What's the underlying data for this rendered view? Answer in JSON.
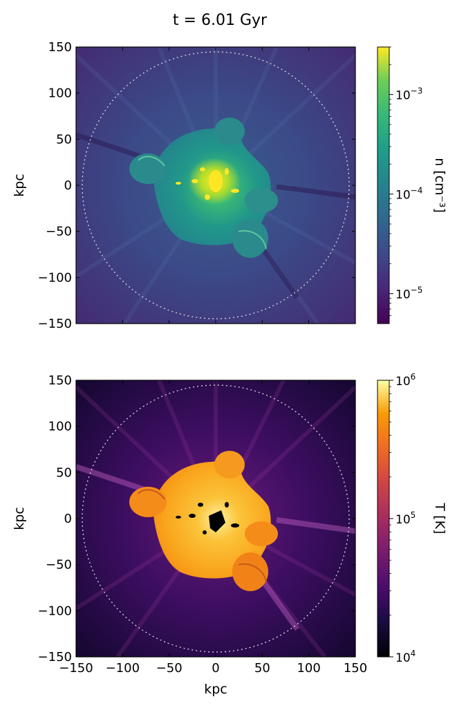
{
  "chart_data": [
    {
      "type": "heatmap",
      "title": "t = 6.01 Gyr",
      "xlabel": "",
      "ylabel": "kpc",
      "xlim": [
        -150,
        150
      ],
      "ylim": [
        -150,
        150
      ],
      "x_ticks": [
        -150,
        -100,
        -50,
        0,
        50,
        100,
        150
      ],
      "y_ticks": [
        "150",
        "100",
        "50",
        "0",
        "−50",
        "−100",
        "−150"
      ],
      "colorbar": {
        "label": "n [cm⁻³]",
        "scale": "log",
        "range": [
          5e-06,
          0.003
        ],
        "ticks": [
          {
            "base": "10",
            "exp": "−3",
            "value": 0.001
          },
          {
            "base": "10",
            "exp": "−4",
            "value": 0.0001
          },
          {
            "base": "10",
            "exp": "−5",
            "value": 1e-05
          }
        ],
        "colormap": "viridis"
      },
      "reference_circle_radius_kpc": 145
    },
    {
      "type": "heatmap",
      "xlabel": "kpc",
      "ylabel": "kpc",
      "xlim": [
        -150,
        150
      ],
      "ylim": [
        -150,
        150
      ],
      "x_ticks": [
        "−150",
        "−100",
        "−50",
        "0",
        "50",
        "100",
        "150"
      ],
      "y_ticks": [
        "150",
        "100",
        "50",
        "0",
        "−50",
        "−100",
        "−150"
      ],
      "colorbar": {
        "label": "T [K]",
        "scale": "log",
        "range": [
          10000,
          1000000
        ],
        "ticks": [
          {
            "base": "10",
            "exp": "6",
            "value": 1000000
          },
          {
            "base": "10",
            "exp": "5",
            "value": 100000
          },
          {
            "base": "10",
            "exp": "4",
            "value": 10000
          }
        ],
        "colormap": "inferno"
      },
      "reference_circle_radius_kpc": 145
    }
  ]
}
